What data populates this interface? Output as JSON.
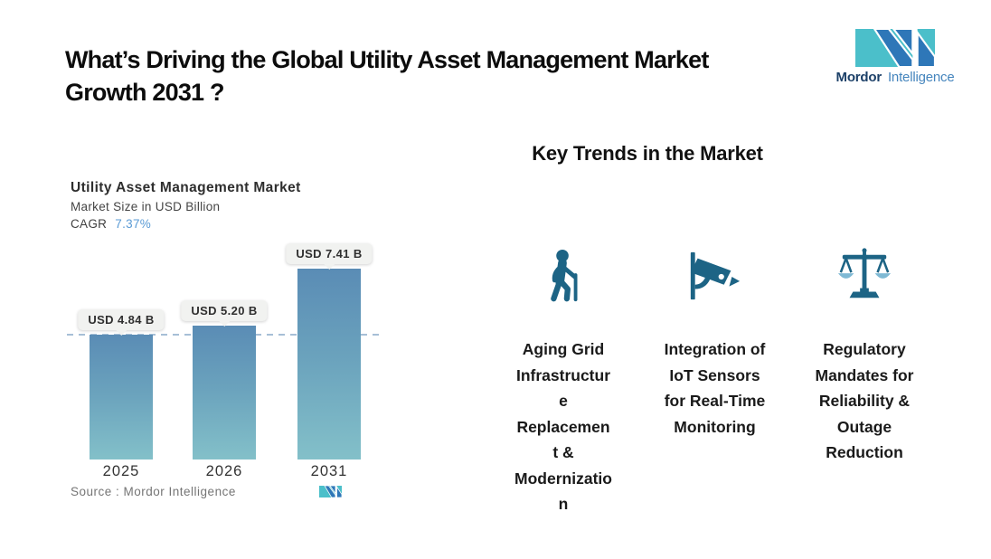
{
  "page": {
    "title_display": "What’s Driving the Global Utility Asset Management Market\nGrowth 2031 ?",
    "background_color": "#ffffff"
  },
  "brand": {
    "name_primary": "Mordor",
    "name_secondary": "Intelligence",
    "colors": {
      "teal": "#4bbfca",
      "blue": "#2e77b8",
      "navy_text": "#1c4068",
      "light_blue_text": "#4585bd"
    }
  },
  "chart": {
    "title": "Utility Asset Management Market",
    "subtitle": "Market Size in USD Billion",
    "cagr_label": "CAGR",
    "cagr_value": "7.37%",
    "source_text": "Source :  Mordor Intelligence"
  },
  "chart_data": {
    "type": "bar",
    "title": "Utility Asset Management Market",
    "ylabel": "Market Size in USD Billion",
    "cagr": "7.37%",
    "categories": [
      "2025",
      "2026",
      "2031"
    ],
    "values": [
      4.84,
      5.2,
      7.41
    ],
    "value_labels": [
      "USD 4.84 B",
      "USD 5.20 B",
      "USD 7.41 B"
    ],
    "ylim": [
      0,
      7.41
    ],
    "grid": false,
    "reference_line": {
      "at_value": 4.84,
      "style": "dashed",
      "color": "#a6bfd6"
    },
    "bar_gradient_top": "#5a8cb5",
    "bar_gradient_bottom": "#83c0c9"
  },
  "trends": {
    "heading": "Key Trends in the Market",
    "icon_color": "#1d6485",
    "items": [
      {
        "icon": "elderly-person-with-cane-icon",
        "label": "Aging Grid Infrastructure Replacement & Modernization",
        "label_display": "Aging Grid\nInfrastructur\ne\nReplacemen\nt &\nModernizatio\nn"
      },
      {
        "icon": "cctv-camera-icon",
        "label": "Integration of IoT Sensors for Real-Time Monitoring",
        "label_display": "Integration of\nIoT Sensors\nfor Real-Time\nMonitoring"
      },
      {
        "icon": "scales-of-justice-icon",
        "label": "Regulatory Mandates for Reliability & Outage Reduction",
        "label_display": "Regulatory\nMandates for\nReliability &\nOutage\nReduction"
      }
    ]
  }
}
